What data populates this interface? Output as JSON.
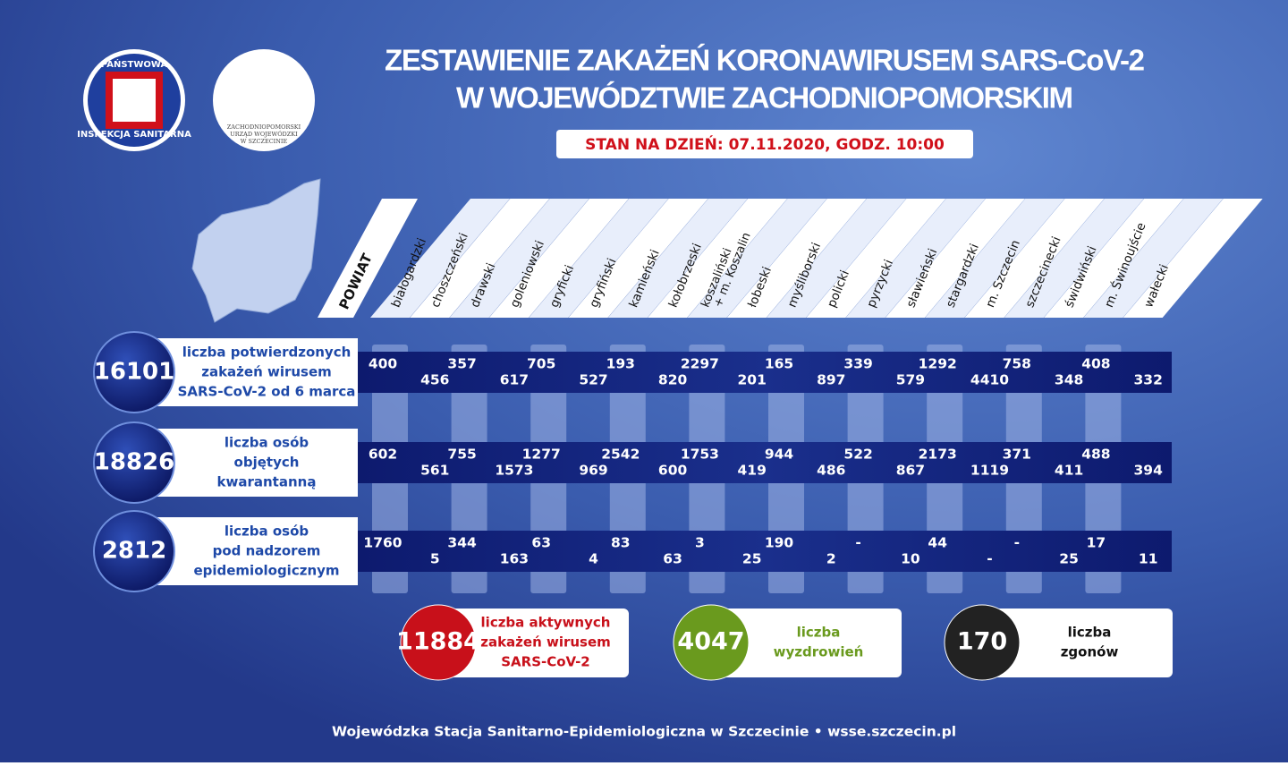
{
  "header": {
    "title": [
      "ZESTAWIENIE ZAKAŻEŃ KORONAWIRUSEM SARS-CoV-2",
      "W WOJEWÓDZTWIE ZACHODNIOPOMORSKIM"
    ],
    "date": "STAN NA DZIEŃ: 07.11.2020, GODZ. 10:00"
  },
  "logos": {
    "sanepid": [
      "PAŃSTWOWA",
      "INSPEKCJA SANITARNA"
    ],
    "urzad": [
      "ZACHODNIOPOMORSKI",
      "URZĄD WOJEWÓDZKI",
      "W SZCZECINIE"
    ]
  },
  "table": {
    "corner": "POWIAT",
    "columns": [
      "białogardzki",
      "choszczeński",
      "drawski",
      "goleniowski",
      "gryficki",
      "gryfiński",
      "kamieński",
      "kołobrzeski",
      [
        "koszaliński",
        "+ m. Koszalin"
      ],
      "łobeski",
      "myśliborski",
      "policki",
      "pyrzycki",
      "sławieński",
      "stargardzki",
      "m. Szczecin",
      "szczecinecki",
      "świdwiński",
      "m. Świnoujście",
      "wałecki"
    ],
    "rows": [
      {
        "total": "16101",
        "label": [
          "liczba potwierdzonych",
          "zakażeń wirusem",
          "SARS-CoV-2 od 6 marca"
        ],
        "values": [
          "400",
          "456",
          "357",
          "617",
          "705",
          "527",
          "193",
          "820",
          "2297",
          "201",
          "165",
          "897",
          "339",
          "579",
          "1292",
          "4410",
          "758",
          "348",
          "408",
          "332"
        ]
      },
      {
        "total": "18826",
        "label": [
          "liczba osób",
          "objętych",
          "kwarantanną"
        ],
        "values": [
          "602",
          "561",
          "755",
          "1573",
          "1277",
          "969",
          "2542",
          "600",
          "1753",
          "419",
          "944",
          "486",
          "522",
          "867",
          "2173",
          "1119",
          "371",
          "411",
          "488",
          "394"
        ]
      },
      {
        "total": "2812",
        "label": [
          "liczba osób",
          "pod nadzorem",
          "epidemiologicznym"
        ],
        "values": [
          "1760",
          "5",
          "344",
          "163",
          "63",
          "4",
          "83",
          "63",
          "3",
          "25",
          "190",
          "2",
          "-",
          "10",
          "44",
          "-",
          "-",
          "25",
          "17",
          "11"
        ]
      }
    ]
  },
  "summary": [
    {
      "value": "11884",
      "label": [
        "liczba aktywnych",
        "zakażeń wirusem",
        "SARS-CoV-2"
      ],
      "color": "#c8101a"
    },
    {
      "value": "4047",
      "label": [
        "liczba",
        "wyzdrowień"
      ],
      "color": "#6a9a1e"
    },
    {
      "value": "170",
      "label": [
        "liczba",
        "zgonów"
      ],
      "color": "#222222"
    }
  ],
  "footer": "Wojewódzka Stacja Sanitarno-Epidemiologiczna w Szczecinie • wsse.szczecin.pl"
}
